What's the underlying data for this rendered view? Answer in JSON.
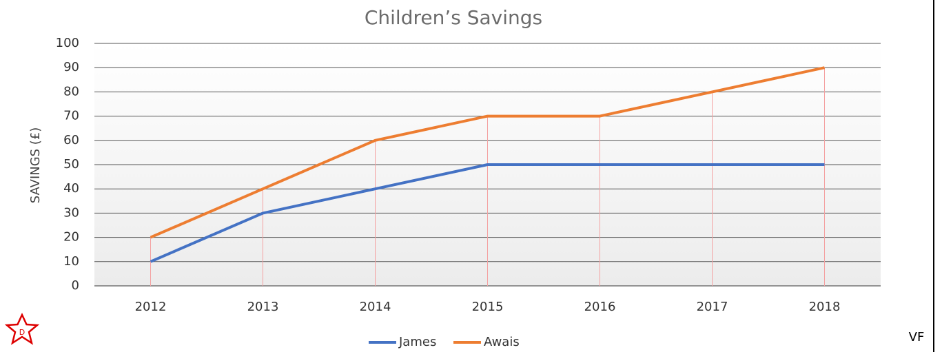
{
  "chart_data": {
    "type": "line",
    "title": "Children’s Savings",
    "y_label": "SAVINGS (£)",
    "categories": [
      "2012",
      "2013",
      "2014",
      "2015",
      "2016",
      "2017",
      "2018"
    ],
    "series": [
      {
        "name": "James",
        "color": "#4472c4",
        "values": [
          10,
          30,
          40,
          50,
          50,
          50,
          50
        ]
      },
      {
        "name": "Awais",
        "color": "#ed7d31",
        "values": [
          20,
          40,
          60,
          70,
          70,
          80,
          90
        ]
      }
    ],
    "ylim": [
      0,
      100
    ],
    "yticks": [
      0,
      10,
      20,
      30,
      40,
      50,
      60,
      70,
      80,
      90,
      100
    ],
    "grid": true,
    "drop_lines": true,
    "legend": "bottom"
  },
  "badge": "D",
  "corner_text": "VF"
}
